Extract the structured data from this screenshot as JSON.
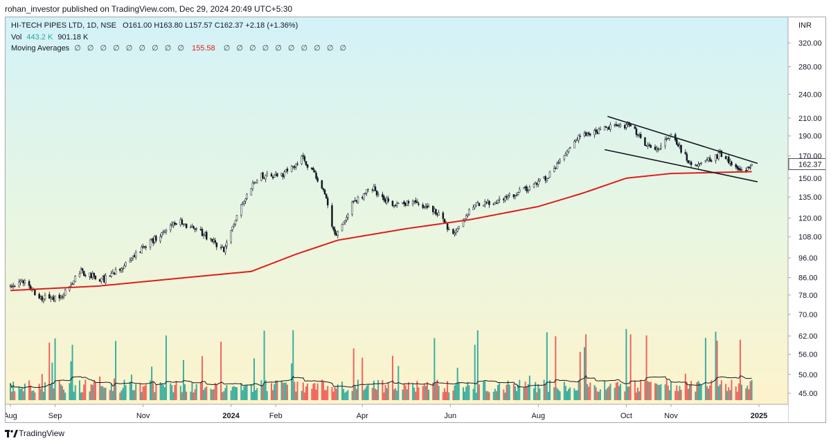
{
  "header": {
    "published": "rohan_investor published on TradingView.com, Dec 29, 2024 20:49 UTC+5:30"
  },
  "legend": {
    "symbol": "HI-TECH PIPES LTD, 1D, NSE",
    "ohlc": "O161.00  H163.80  L157.57  C162.37  +2.18 (+1.36%)",
    "vol_label": "Vol",
    "vol_value": "443.2 K",
    "vol_ma_value": "901.18 K",
    "ma_label": "Moving Averages",
    "ma_empty_before": "∅ ∅ ∅ ∅ ∅ ∅ ∅ ∅ ∅",
    "ma_value": "155.58",
    "ma_empty_after": "∅ ∅ ∅ ∅ ∅ ∅ ∅ ∅ ∅ ∅"
  },
  "footer": {
    "brand": "TradingView"
  },
  "colors": {
    "up": "#26a69a",
    "down": "#ef5350",
    "ma": "#e01b1b",
    "bg_top": "#d3f2f8",
    "bg_bottom": "#fdf3cc"
  },
  "chart_data": {
    "type": "candlestick",
    "currency_label": "INR",
    "price_axis": {
      "scale": "log",
      "ticks": [
        320,
        280,
        240,
        210,
        190,
        170,
        150,
        135,
        120,
        108,
        96,
        86,
        78,
        70,
        62,
        56,
        50,
        45
      ],
      "tick_labels": [
        "320.00",
        "280.00",
        "240.00",
        "210.00",
        "190.00",
        "170.00",
        "150.00",
        "135.00",
        "120.00",
        "108.00",
        "96.00",
        "86.00",
        "78.00",
        "70.00",
        "62.00",
        "56.00",
        "50.00",
        "45.00"
      ],
      "last_price_label": "162.37"
    },
    "time_axis": {
      "range": [
        "2023-08-01",
        "2025-01-01"
      ],
      "labels": [
        {
          "text": "Aug",
          "date": "2023-08-01"
        },
        {
          "text": "Sep",
          "date": "2023-09-01"
        },
        {
          "text": "Nov",
          "date": "2023-11-01"
        },
        {
          "text": "2024",
          "date": "2024-01-01",
          "bold": true
        },
        {
          "text": "Feb",
          "date": "2024-02-01"
        },
        {
          "text": "Apr",
          "date": "2024-04-01"
        },
        {
          "text": "Jun",
          "date": "2024-06-01"
        },
        {
          "text": "Aug",
          "date": "2024-08-01"
        },
        {
          "text": "Oct",
          "date": "2024-10-01"
        },
        {
          "text": "Nov",
          "date": "2024-11-01"
        },
        {
          "text": "2025",
          "date": "2025-01-01",
          "bold": true
        }
      ]
    },
    "price_path": [
      [
        "2023-08-01",
        82
      ],
      [
        "2023-08-10",
        84
      ],
      [
        "2023-08-22",
        77
      ],
      [
        "2023-09-05",
        77
      ],
      [
        "2023-09-18",
        89
      ],
      [
        "2023-10-05",
        85
      ],
      [
        "2023-10-20",
        93
      ],
      [
        "2023-11-05",
        104
      ],
      [
        "2023-11-25",
        118
      ],
      [
        "2023-12-10",
        112
      ],
      [
        "2023-12-27",
        100
      ],
      [
        "2024-01-08",
        130
      ],
      [
        "2024-01-20",
        152
      ],
      [
        "2024-02-05",
        152
      ],
      [
        "2024-02-20",
        168
      ],
      [
        "2024-03-05",
        142
      ],
      [
        "2024-03-13",
        108
      ],
      [
        "2024-03-25",
        130
      ],
      [
        "2024-04-08",
        142
      ],
      [
        "2024-04-20",
        130
      ],
      [
        "2024-05-10",
        130
      ],
      [
        "2024-05-22",
        124
      ],
      [
        "2024-06-04",
        109
      ],
      [
        "2024-06-15",
        128
      ],
      [
        "2024-07-05",
        132
      ],
      [
        "2024-07-22",
        140
      ],
      [
        "2024-08-08",
        152
      ],
      [
        "2024-08-25",
        185
      ],
      [
        "2024-09-10",
        195
      ],
      [
        "2024-09-25",
        203
      ],
      [
        "2024-10-05",
        200
      ],
      [
        "2024-10-20",
        172
      ],
      [
        "2024-11-01",
        190
      ],
      [
        "2024-11-15",
        162
      ],
      [
        "2024-11-25",
        164
      ],
      [
        "2024-12-05",
        172
      ],
      [
        "2024-12-20",
        155
      ],
      [
        "2024-12-27",
        162
      ]
    ],
    "moving_average_path": [
      [
        "2023-08-01",
        80
      ],
      [
        "2023-10-01",
        82
      ],
      [
        "2023-12-01",
        86
      ],
      [
        "2024-01-15",
        89
      ],
      [
        "2024-02-15",
        98
      ],
      [
        "2024-03-15",
        106
      ],
      [
        "2024-05-01",
        113
      ],
      [
        "2024-06-15",
        119
      ],
      [
        "2024-08-01",
        128
      ],
      [
        "2024-09-01",
        138
      ],
      [
        "2024-10-01",
        150
      ],
      [
        "2024-11-01",
        154
      ],
      [
        "2024-12-27",
        155.58
      ]
    ],
    "trendlines": [
      {
        "start": [
          "2024-09-18",
          212
        ],
        "end": [
          "2024-12-31",
          163
        ]
      },
      {
        "start": [
          "2024-09-16",
          176
        ],
        "end": [
          "2024-12-31",
          147
        ]
      }
    ],
    "volume": {
      "unit": "K",
      "last": 443.2,
      "ma_last": 901.18
    }
  }
}
